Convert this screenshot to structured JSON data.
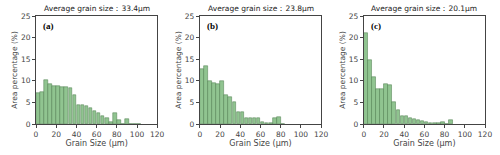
{
  "chart_data": [
    {
      "type": "bar",
      "title": "Average grain size：33.4μm",
      "annotations": [
        "(a)"
      ],
      "x": [
        2,
        6,
        10,
        14,
        18,
        22,
        26,
        30,
        34,
        38,
        42,
        46,
        50,
        54,
        58,
        62,
        66,
        70,
        74,
        78,
        82,
        86,
        90,
        94,
        98,
        102
      ],
      "values": [
        7.2,
        7.5,
        10.3,
        9.2,
        8.8,
        8.8,
        8.5,
        8.5,
        8.3,
        6.7,
        4.3,
        4.5,
        4.2,
        3.7,
        3.0,
        2.5,
        1.8,
        1.5,
        0.4,
        2.6,
        1.0,
        0.0,
        1.2,
        0.0,
        0.0,
        0.0
      ],
      "xlabel": "Grain Size (μm)",
      "ylabel": "Area percentage (%)",
      "xlim": [
        0,
        120
      ],
      "xticks": [
        0,
        20,
        40,
        60,
        80,
        100,
        120
      ],
      "ylim": [
        0,
        25
      ],
      "yticks": [
        0,
        5,
        10,
        15,
        20,
        25
      ],
      "color": "#90c490",
      "grid": false
    },
    {
      "type": "bar",
      "title": "Average grain size：23.8μm",
      "annotations": [
        "(b)"
      ],
      "x": [
        2,
        6,
        10,
        14,
        18,
        22,
        26,
        30,
        34,
        38,
        42,
        46,
        50,
        54,
        58,
        62,
        66,
        70,
        74,
        78,
        82
      ],
      "values": [
        12.8,
        13.5,
        10.0,
        9.5,
        9.3,
        10.0,
        6.7,
        6.2,
        5.0,
        2.8,
        2.7,
        1.3,
        1.3,
        1.3,
        1.3,
        0.5,
        0.3,
        0.2,
        1.3,
        1.7,
        0.0
      ],
      "xlabel": "Grain Size (μm)",
      "ylabel": "Area percentage (%)",
      "xlim": [
        0,
        120
      ],
      "xticks": [
        0,
        20,
        40,
        60,
        80,
        100,
        120
      ],
      "ylim": [
        0,
        25
      ],
      "yticks": [
        0,
        5,
        10,
        15,
        20,
        25
      ],
      "color": "#90c490",
      "grid": false
    },
    {
      "type": "bar",
      "title": "Average grain size：20.1μm",
      "annotations": [
        "(c)"
      ],
      "x": [
        2,
        6,
        10,
        14,
        18,
        22,
        26,
        30,
        34,
        38,
        42,
        46,
        50,
        54,
        58,
        62,
        66,
        70,
        74,
        78,
        82,
        86
      ],
      "values": [
        21.0,
        14.8,
        10.8,
        8.0,
        8.0,
        9.2,
        9.0,
        5.0,
        3.3,
        1.8,
        1.8,
        1.5,
        1.2,
        1.0,
        0.8,
        0.5,
        0.3,
        0.3,
        0.2,
        0.5,
        0.0,
        1.0
      ],
      "xlabel": "Grain Size (μm)",
      "ylabel": "Area percentage (%)",
      "xlim": [
        0,
        120
      ],
      "xticks": [
        0,
        20,
        40,
        60,
        80,
        100,
        120
      ],
      "ylim": [
        0,
        25
      ],
      "yticks": [
        0,
        5,
        10,
        15,
        20,
        25
      ],
      "color": "#90c490",
      "grid": false
    }
  ]
}
